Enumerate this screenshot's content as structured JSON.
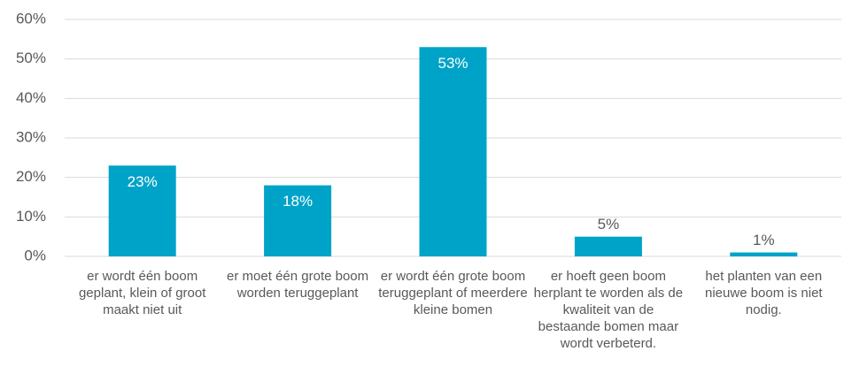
{
  "chart_data": {
    "type": "bar",
    "categories": [
      "er wordt één boom geplant, klein of groot maakt niet uit",
      "er moet één grote boom worden teruggeplant",
      "er wordt één grote boom teruggeplant of meerdere kleine bomen",
      "er hoeft geen boom herplant te worden als de kwaliteit van de bestaande bomen maar wordt verbeterd.",
      "het planten van een nieuwe boom is niet nodig."
    ],
    "values": [
      23,
      18,
      53,
      5,
      1
    ],
    "value_labels": [
      "23%",
      "18%",
      "53%",
      "5%",
      "1%"
    ],
    "color": "#00a3c8",
    "ylim": [
      0,
      60
    ],
    "yticks": [
      {
        "value": 0,
        "label": "0%"
      },
      {
        "value": 10,
        "label": "10%"
      },
      {
        "value": 20,
        "label": "20%"
      },
      {
        "value": 30,
        "label": "30%"
      },
      {
        "value": 40,
        "label": "40%"
      },
      {
        "value": 50,
        "label": "50%"
      },
      {
        "value": 60,
        "label": "60%"
      }
    ],
    "grid": true
  }
}
